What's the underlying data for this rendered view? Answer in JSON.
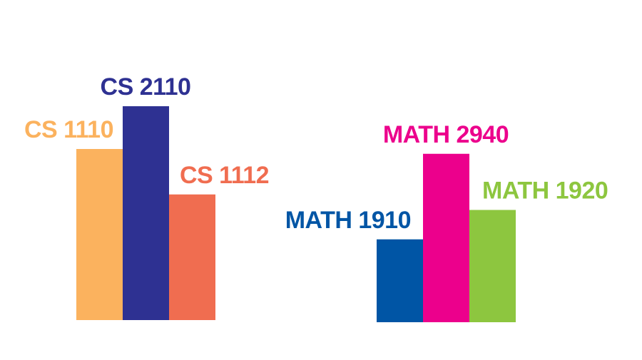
{
  "chart_data": {
    "type": "bar",
    "grid": false,
    "legend": "none",
    "ylim": [
      0,
      100
    ],
    "groups": [
      {
        "bars": [
          {
            "label": "CS 1110",
            "value": 64,
            "color": "#FBB25E"
          },
          {
            "label": "CS 2110",
            "value": 80,
            "color": "#2E3192"
          },
          {
            "label": "CS 1112",
            "value": 47,
            "color": "#F06D50"
          }
        ]
      },
      {
        "bars": [
          {
            "label": "MATH 1910",
            "value": 31,
            "color": "#0055A5"
          },
          {
            "label": "MATH 2940",
            "value": 63,
            "color": "#EC008C"
          },
          {
            "label": "MATH 1920",
            "value": 42,
            "color": "#8DC63F"
          }
        ]
      }
    ]
  }
}
